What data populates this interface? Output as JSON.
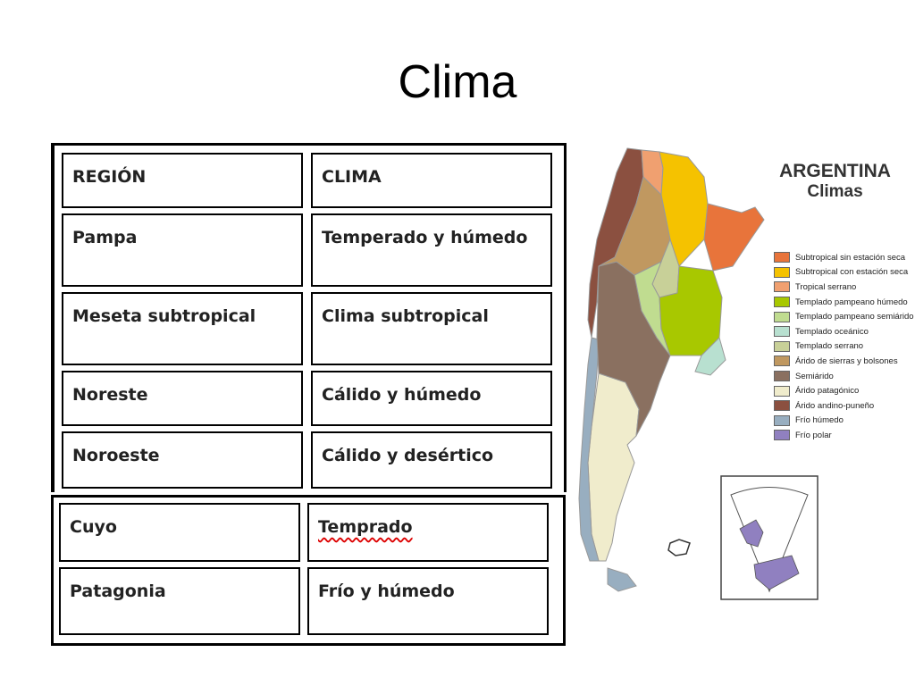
{
  "title": "Clima",
  "table": {
    "headers": [
      "REGIÓN",
      "CLIMA"
    ],
    "rows": [
      {
        "region": "Pampa",
        "clima": "Temperado y húmedo"
      },
      {
        "region": "Meseta subtropical",
        "clima": "Clima subtropical"
      },
      {
        "region": "Noreste",
        "clima": "Cálido y húmedo"
      },
      {
        "region": "Noroeste",
        "clima": "Cálido y desértico"
      },
      {
        "region": "Cuyo",
        "clima": "Temprado"
      },
      {
        "region": "Patagonia",
        "clima": "Frío y húmedo"
      }
    ]
  },
  "map": {
    "title_line1": "ARGENTINA",
    "title_line2": "Climas",
    "legend": [
      {
        "label": "Subtropical sin estación seca",
        "color": "#e8743b"
      },
      {
        "label": "Subtropical con estación seca",
        "color": "#f5c200"
      },
      {
        "label": "Tropical serrano",
        "color": "#f0a070"
      },
      {
        "label": "Templado pampeano húmedo",
        "color": "#a8c800"
      },
      {
        "label": "Templado pampeano semiárido",
        "color": "#c0dc90"
      },
      {
        "label": "Templado oceánico",
        "color": "#b8e0d0"
      },
      {
        "label": "Templado serrano",
        "color": "#c8d098"
      },
      {
        "label": "Árido de sierras y bolsones",
        "color": "#c09860"
      },
      {
        "label": "Semiárido",
        "color": "#8a7060"
      },
      {
        "label": "Árido patagónico",
        "color": "#f0eccc"
      },
      {
        "label": "Árido andino-puneño",
        "color": "#8b5040"
      },
      {
        "label": "Frío húmedo",
        "color": "#98aec0"
      },
      {
        "label": "Frío polar",
        "color": "#9080c0"
      }
    ]
  }
}
